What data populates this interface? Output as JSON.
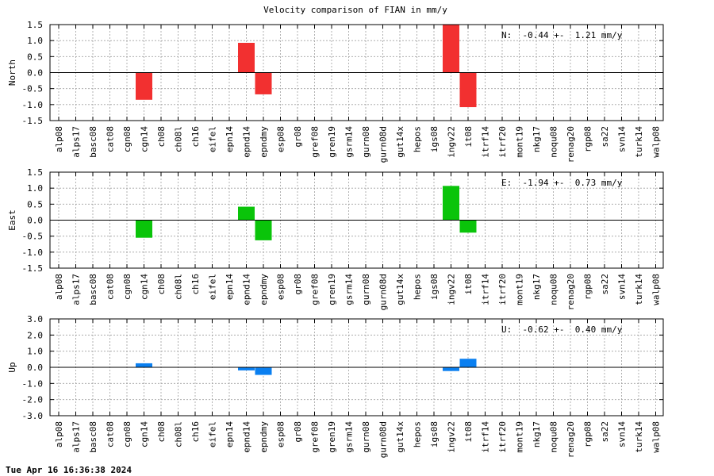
{
  "title": "Velocity comparison of FIAN in mm/y",
  "footer": "Tue Apr 16 16:36:38 2024",
  "chart_data": [
    {
      "type": "bar",
      "ylabel": "North",
      "ylim": [
        -1.5,
        1.5
      ],
      "yticks": [
        "1.5",
        "1.0",
        "0.5",
        "0.0",
        "-0.5",
        "-1.0",
        "-1.5"
      ],
      "color": "#f23030",
      "summary": "N:  -0.44 +-  1.21 mm/y",
      "categories": [
        "alp08",
        "alps17",
        "basc08",
        "cat08",
        "cgn08",
        "cgn14",
        "ch08",
        "ch08l",
        "ch16",
        "eifel",
        "epn14",
        "epnd14",
        "epndmy",
        "esp08",
        "gr08",
        "gref08",
        "gren19",
        "gsrm14",
        "gurn08",
        "gurn08d",
        "gut14x",
        "hepos",
        "igs08",
        "ingv22",
        "it08",
        "itrf14",
        "itrf20",
        "mont19",
        "nkg17",
        "noqu08",
        "renag20",
        "rgp08",
        "sa22",
        "svn14",
        "turk14",
        "walp08"
      ],
      "values": [
        null,
        null,
        null,
        null,
        null,
        -0.85,
        null,
        null,
        null,
        null,
        null,
        0.93,
        -0.68,
        null,
        null,
        null,
        null,
        null,
        null,
        null,
        null,
        null,
        null,
        1.5,
        -1.08,
        null,
        null,
        null,
        null,
        null,
        null,
        null,
        null,
        null,
        null,
        null
      ]
    },
    {
      "type": "bar",
      "ylabel": "East",
      "ylim": [
        -1.5,
        1.5
      ],
      "yticks": [
        "1.5",
        "1.0",
        "0.5",
        "0.0",
        "-0.5",
        "-1.0",
        "-1.5"
      ],
      "color": "#0ac40a",
      "summary": "E:  -1.94 +-  0.73 mm/y",
      "categories": [
        "alp08",
        "alps17",
        "basc08",
        "cat08",
        "cgn08",
        "cgn14",
        "ch08",
        "ch08l",
        "ch16",
        "eifel",
        "epn14",
        "epnd14",
        "epndmy",
        "esp08",
        "gr08",
        "gref08",
        "gren19",
        "gsrm14",
        "gurn08",
        "gurn08d",
        "gut14x",
        "hepos",
        "igs08",
        "ingv22",
        "it08",
        "itrf14",
        "itrf20",
        "mont19",
        "nkg17",
        "noqu08",
        "renag20",
        "rgp08",
        "sa22",
        "svn14",
        "turk14",
        "walp08"
      ],
      "values": [
        null,
        null,
        null,
        null,
        null,
        -0.55,
        null,
        null,
        null,
        null,
        null,
        0.42,
        -0.63,
        null,
        null,
        null,
        null,
        null,
        null,
        null,
        null,
        null,
        null,
        1.07,
        -0.39,
        null,
        null,
        null,
        null,
        null,
        null,
        null,
        null,
        null,
        null,
        null
      ]
    },
    {
      "type": "bar",
      "ylabel": "Up",
      "ylim": [
        -3.0,
        3.0
      ],
      "yticks": [
        "3.0",
        "2.0",
        "1.0",
        "0.0",
        "-1.0",
        "-2.0",
        "-3.0"
      ],
      "color": "#0a7ff0",
      "summary": "U:  -0.62 +-  0.40 mm/y",
      "categories": [
        "alp08",
        "alps17",
        "basc08",
        "cat08",
        "cgn08",
        "cgn14",
        "ch08",
        "ch08l",
        "ch16",
        "eifel",
        "epn14",
        "epnd14",
        "epndmy",
        "esp08",
        "gr08",
        "gref08",
        "gren19",
        "gsrm14",
        "gurn08",
        "gurn08d",
        "gut14x",
        "hepos",
        "igs08",
        "ingv22",
        "it08",
        "itrf14",
        "itrf20",
        "mont19",
        "nkg17",
        "noqu08",
        "renag20",
        "rgp08",
        "sa22",
        "svn14",
        "turk14",
        "walp08"
      ],
      "values": [
        null,
        null,
        null,
        null,
        null,
        0.25,
        null,
        null,
        null,
        null,
        null,
        -0.19,
        -0.47,
        null,
        null,
        null,
        null,
        null,
        null,
        null,
        null,
        null,
        null,
        -0.23,
        0.53,
        null,
        null,
        null,
        null,
        null,
        null,
        null,
        null,
        null,
        null,
        null
      ]
    }
  ]
}
